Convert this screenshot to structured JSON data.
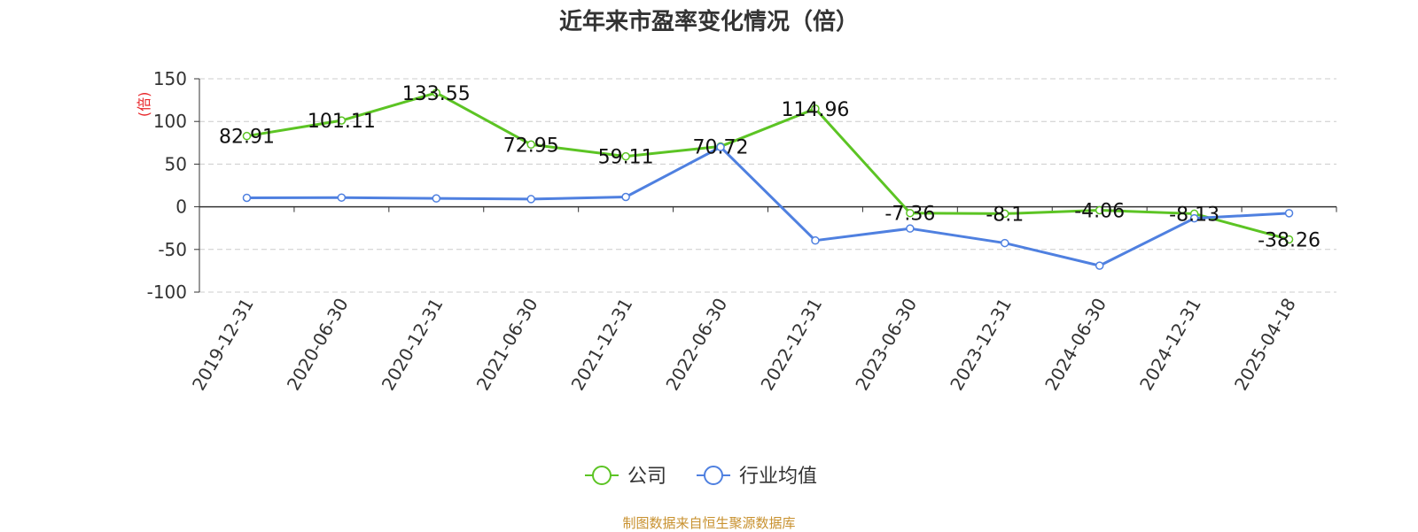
{
  "chart_data": {
    "type": "line",
    "title": "近年来市盈率变化情况（倍）",
    "ylabel": "(倍)",
    "ylim": [
      -100,
      150
    ],
    "yticks": [
      -100,
      -50,
      0,
      50,
      100,
      150
    ],
    "categories": [
      "2019-12-31",
      "2020-06-30",
      "2020-12-31",
      "2021-06-30",
      "2021-12-31",
      "2022-06-30",
      "2022-12-31",
      "2023-06-30",
      "2023-12-31",
      "2024-06-30",
      "2024-12-31",
      "2025-04-18"
    ],
    "grid": true,
    "legend_position": "bottom",
    "series": [
      {
        "name": "公司",
        "color": "#5cc424",
        "values": [
          82.91,
          101.11,
          133.55,
          72.95,
          59.11,
          70.72,
          114.96,
          -7.36,
          -8.1,
          -4.06,
          -8.13,
          -38.26
        ],
        "labels": [
          "82.91",
          "101.11",
          "133.55",
          "72.95",
          "59.11",
          "70.72",
          "114.96",
          "-7.36",
          "-8.1",
          "-4.06",
          "-8.13",
          "-38.26"
        ]
      },
      {
        "name": "行业均值",
        "color": "#4f80e0",
        "values": [
          10.5,
          10.8,
          9.8,
          9.0,
          11.5,
          70.0,
          -39.5,
          -25.5,
          -42.5,
          -69.0,
          -13.5,
          -7.5
        ]
      }
    ]
  },
  "source": "制图数据来自恒生聚源数据库",
  "colors": {
    "title": "#333333",
    "axis": "#333333",
    "grid": "#cccccc",
    "ylabel": "#e8262a",
    "source": "#c8912f"
  }
}
